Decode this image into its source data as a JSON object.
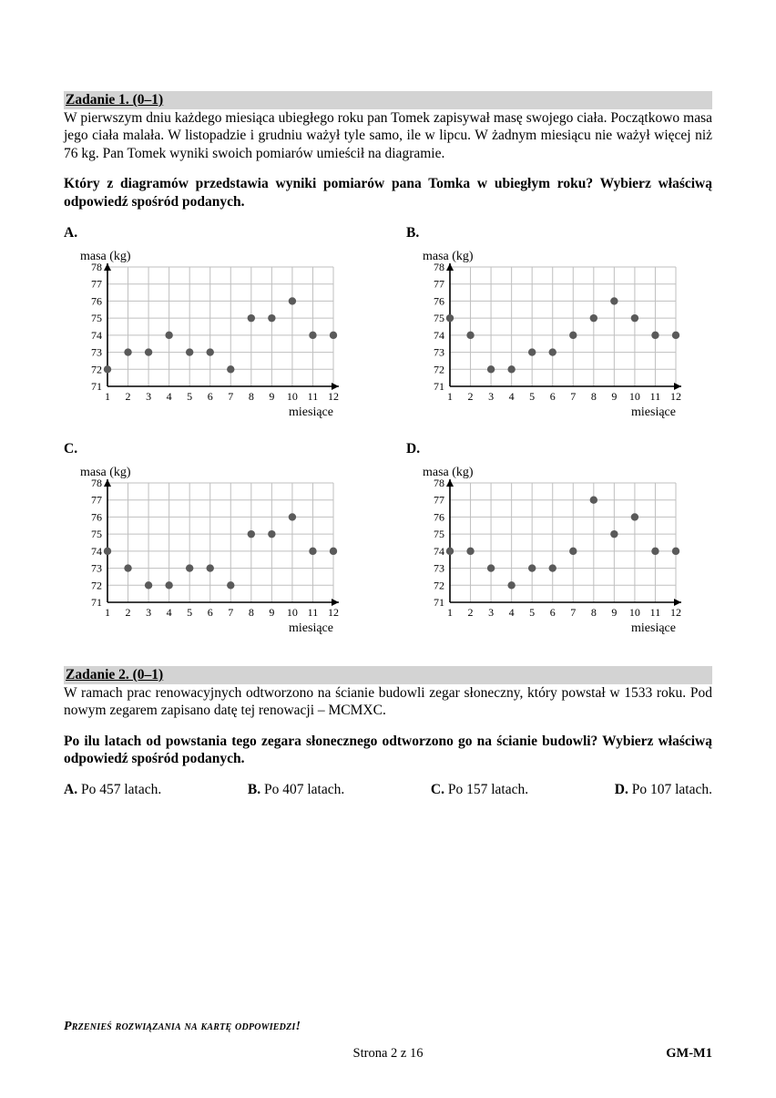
{
  "task1": {
    "header": "Zadanie 1. (0–1)",
    "body": "W pierwszym dniu każdego miesiąca ubiegłego roku pan Tomek zapisywał masę swojego ciała. Początkowo masa jego ciała malała. W listopadzie i grudniu ważył tyle samo, ile w lipcu. W żadnym miesiącu nie ważył więcej niż 76 kg. Pan Tomek wyniki swoich pomiarów umieścił na diagramie.",
    "question": "Który z diagramów przedstawia wyniki pomiarów pana Tomka w ubiegłym roku? Wybierz właściwą odpowiedź spośród podanych.",
    "chart_common": {
      "ylabel": "masa (kg)",
      "xlabel": "miesiące",
      "x_values": [
        1,
        2,
        3,
        4,
        5,
        6,
        7,
        8,
        9,
        10,
        11,
        12
      ],
      "y_ticks": [
        71,
        72,
        73,
        74,
        75,
        76,
        77,
        78
      ],
      "ylim": [
        71,
        78
      ],
      "grid_color": "#bfbfbf",
      "axis_color": "#000000",
      "point_color": "#5a5a5a",
      "point_radius": 4.2,
      "background_color": "#ffffff",
      "font_size_ticks": 12,
      "font_size_label": 14
    },
    "options": [
      {
        "letter": "A.",
        "y": [
          72,
          73,
          73,
          74,
          73,
          73,
          72,
          75,
          75,
          76,
          74,
          74
        ]
      },
      {
        "letter": "B.",
        "y": [
          75,
          74,
          72,
          72,
          73,
          73,
          74,
          75,
          76,
          75,
          74,
          74
        ]
      },
      {
        "letter": "C.",
        "y": [
          74,
          73,
          72,
          72,
          73,
          73,
          72,
          75,
          75,
          76,
          74,
          74
        ]
      },
      {
        "letter": "D.",
        "y": [
          74,
          74,
          73,
          72,
          73,
          73,
          74,
          77,
          75,
          76,
          74,
          74
        ]
      }
    ]
  },
  "task2": {
    "header": "Zadanie 2. (0–1)",
    "body": "W ramach prac renowacyjnych odtworzono na ścianie budowli zegar słoneczny, który powstał w 1533 roku. Pod nowym zegarem zapisano datę tej renowacji – MCMXC.",
    "question": "Po ilu latach od powstania tego zegara słonecznego odtworzono go na ścianie budowli? Wybierz właściwą odpowiedź spośród podanych.",
    "answers": [
      {
        "letter": "A.",
        "text": "Po 457 latach."
      },
      {
        "letter": "B.",
        "text": "Po 407 latach."
      },
      {
        "letter": "C.",
        "text": "Po 157 latach."
      },
      {
        "letter": "D.",
        "text": "Po 107 latach."
      }
    ]
  },
  "footer": {
    "transfer": "Przenieś rozwiązania na kartę odpowiedzi!",
    "page": "Strona 2 z 16",
    "code": "GM-M1"
  }
}
